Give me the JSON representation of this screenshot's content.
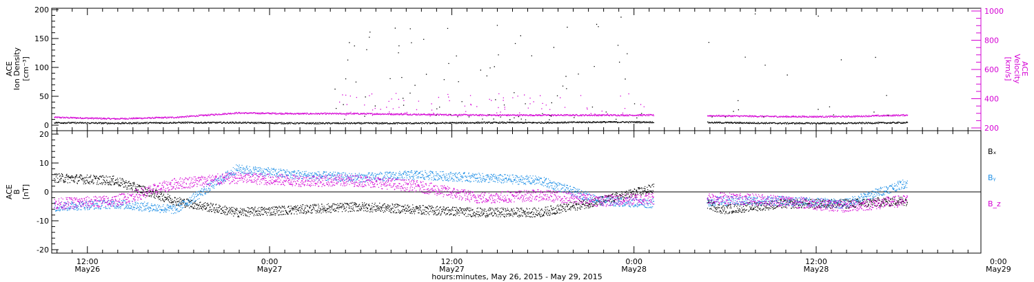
{
  "colors": {
    "black": "#000000",
    "magenta": "#d400d4",
    "blue": "#1e8fe6",
    "background": "#ffffff"
  },
  "chart_data": [
    {
      "type": "scatter",
      "panel": "top",
      "ylabel_left": [
        "ACE",
        "Ion Density",
        "[cm⁻³]"
      ],
      "ylabel_right": [
        "ACE",
        "Velocity",
        "[km/s]"
      ],
      "ylim_left": [
        0,
        200
      ],
      "ylim_right": [
        200,
        1000
      ],
      "yticks_left": [
        "0",
        "50",
        "100",
        "150",
        "200"
      ],
      "yticks_right": [
        "200",
        "400",
        "600",
        "800",
        "1000"
      ],
      "grid": false,
      "series": [
        {
          "color": "black",
          "axis": "left",
          "x_hours": [
            0,
            4,
            8,
            12,
            16,
            20,
            24,
            28,
            32,
            36,
            40,
            44,
            48,
            52,
            56,
            60,
            64,
            68,
            72,
            76,
            80,
            84,
            88,
            92
          ],
          "values": [
            5,
            4,
            5,
            5,
            4,
            4,
            4,
            5,
            5,
            6,
            6,
            5,
            4,
            4,
            5,
            6,
            6,
            6,
            7,
            7,
            9,
            8,
            8,
            8
          ]
        },
        {
          "color": "magenta",
          "axis": "right",
          "x_hours": [
            0,
            4,
            8,
            12,
            16,
            20,
            24,
            28,
            32,
            36,
            40,
            44,
            48,
            52,
            56,
            60,
            64,
            68,
            72,
            76,
            80,
            84,
            88,
            92
          ],
          "values": [
            275,
            265,
            275,
            305,
            300,
            300,
            295,
            290,
            290,
            290,
            290,
            285,
            280,
            280,
            290,
            300,
            305,
            305,
            310,
            315,
            335,
            330,
            340,
            355
          ]
        }
      ]
    },
    {
      "type": "scatter",
      "panel": "bottom",
      "ylabel_left": [
        "ACE",
        "B",
        "[nT]"
      ],
      "ylim": [
        -21,
        21
      ],
      "yticks": [
        "-20",
        "-10",
        "0",
        "10",
        "20"
      ],
      "zero_line": true,
      "grid": false,
      "legend": [
        "Bₓ",
        "Bᵧ",
        "B_z"
      ],
      "legend_placement": "right",
      "series": [
        {
          "name": "Bₓ",
          "color": "black",
          "x_hours": [
            0,
            4,
            8,
            12,
            16,
            20,
            24,
            28,
            32,
            36,
            40,
            44,
            48,
            52,
            56,
            60,
            64,
            68,
            72,
            76,
            80,
            84,
            88,
            92
          ],
          "values": [
            5,
            4,
            -3,
            -7,
            -6,
            -5,
            -6,
            -7,
            -7,
            -3,
            2,
            -6,
            -4,
            -4,
            -3,
            -4,
            -2,
            -3,
            -2,
            -4,
            -5,
            -4,
            -3,
            -2
          ]
        },
        {
          "name": "Bᵧ",
          "color": "blue",
          "x_hours": [
            0,
            4,
            8,
            12,
            16,
            20,
            24,
            28,
            32,
            36,
            40,
            44,
            48,
            52,
            56,
            60,
            64,
            68,
            72,
            76,
            80,
            84,
            88,
            92
          ],
          "values": [
            -5,
            -4,
            -6,
            8,
            6,
            5,
            6,
            5,
            4,
            -3,
            -4,
            -3,
            -3,
            -4,
            3,
            5,
            4,
            5,
            5,
            4,
            5,
            3,
            6,
            7
          ]
        },
        {
          "name": "B_z",
          "color": "magenta",
          "x_hours": [
            0,
            4,
            8,
            12,
            16,
            20,
            24,
            28,
            32,
            36,
            40,
            44,
            48,
            52,
            56,
            60,
            64,
            68,
            72,
            76,
            80,
            84,
            88,
            92
          ],
          "values": [
            -4,
            -3,
            3,
            5,
            4,
            4,
            2,
            -2,
            -1,
            -3,
            -2,
            -2,
            -3,
            -5,
            -3,
            -1,
            -3,
            1,
            0,
            2,
            1,
            2,
            3,
            5
          ]
        }
      ]
    }
  ],
  "xaxis": {
    "title": "hours:minutes, May 26, 2015 - May 29, 2015",
    "ticks": [
      {
        "time": "12:00",
        "day": "May26"
      },
      {
        "time": "0:00",
        "day": "May27"
      },
      {
        "time": "12:00",
        "day": "May27"
      },
      {
        "time": "0:00",
        "day": "May28"
      },
      {
        "time": "12:00",
        "day": "May28"
      },
      {
        "time": "0:00",
        "day": "May29"
      }
    ]
  }
}
